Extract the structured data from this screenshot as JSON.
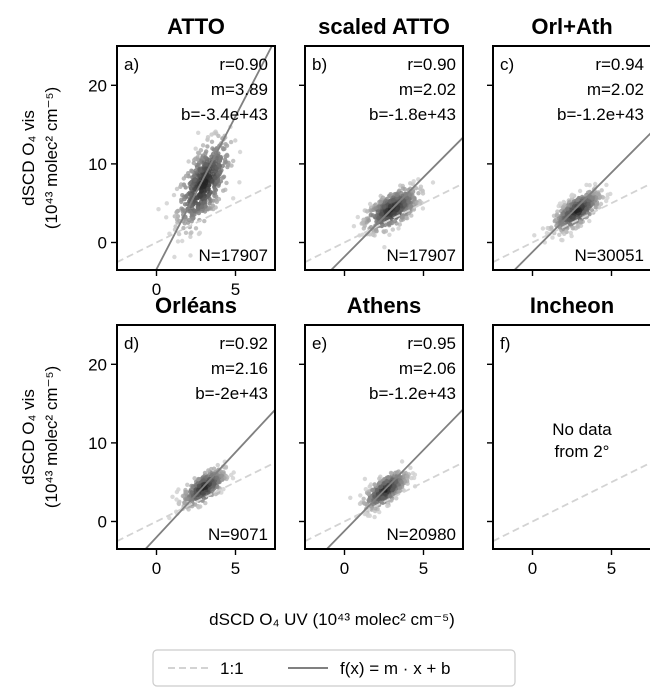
{
  "chart_data": [
    {
      "type": "scatter",
      "title": "ATTO",
      "panel": "a)",
      "stats": {
        "r": "r=0.90",
        "m": "m=3.89",
        "b": "b=-3.4e+43",
        "n": "N=17907"
      },
      "slope": 3.89,
      "intercept": -3.4,
      "cloud": {
        "cx": 3.0,
        "cy": 7.5,
        "sx": 1.5,
        "sy": 5.5,
        "tilt": 0.55,
        "count": 500
      },
      "xlim": [
        -2.5,
        7.5
      ],
      "ylim": [
        -3.5,
        25
      ],
      "xticks": [
        "0",
        "5"
      ],
      "yticks": [
        "0",
        "10",
        "20"
      ]
    },
    {
      "type": "scatter",
      "title": "scaled ATTO",
      "panel": "b)",
      "stats": {
        "r": "r=0.90",
        "m": "m=2.02",
        "b": "b=-1.8e+43",
        "n": "N=17907"
      },
      "slope": 2.02,
      "intercept": -1.8,
      "cloud": {
        "cx": 3.0,
        "cy": 4.2,
        "sx": 1.5,
        "sy": 2.7,
        "tilt": 0.55,
        "count": 450
      },
      "xlim": [
        -2.5,
        7.5
      ],
      "ylim": [
        -3.5,
        25
      ],
      "xticks": [],
      "yticks": []
    },
    {
      "type": "scatter",
      "title": "Orl+Ath",
      "panel": "c)",
      "stats": {
        "r": "r=0.94",
        "m": "m=2.02",
        "b": "b=-1.2e+43",
        "n": "N=30051"
      },
      "slope": 2.02,
      "intercept": -1.2,
      "cloud": {
        "cx": 2.8,
        "cy": 4.0,
        "sx": 1.3,
        "sy": 2.4,
        "tilt": 0.65,
        "count": 450
      },
      "xlim": [
        -2.5,
        7.5
      ],
      "ylim": [
        -3.5,
        25
      ],
      "xticks": [],
      "yticks": []
    },
    {
      "type": "scatter",
      "title": "Orléans",
      "panel": "d)",
      "stats": {
        "r": "r=0.92",
        "m": "m=2.16",
        "b": "b=-2e+43",
        "n": "N=9071"
      },
      "slope": 2.16,
      "intercept": -2.0,
      "cloud": {
        "cx": 3.0,
        "cy": 4.3,
        "sx": 1.2,
        "sy": 2.3,
        "tilt": 0.6,
        "count": 350
      },
      "xlim": [
        -2.5,
        7.5
      ],
      "ylim": [
        -3.5,
        25
      ],
      "xticks": [
        "0",
        "5"
      ],
      "yticks": [
        "0",
        "10",
        "20"
      ]
    },
    {
      "type": "scatter",
      "title": "Athens",
      "panel": "e)",
      "stats": {
        "r": "r=0.95",
        "m": "m=2.06",
        "b": "b=-1.2e+43",
        "n": "N=20980"
      },
      "slope": 2.06,
      "intercept": -1.2,
      "cloud": {
        "cx": 2.6,
        "cy": 4.0,
        "sx": 1.2,
        "sy": 2.3,
        "tilt": 0.65,
        "count": 400
      },
      "xlim": [
        -2.5,
        7.5
      ],
      "ylim": [
        -3.5,
        25
      ],
      "xticks": [
        "0",
        "5"
      ],
      "yticks": []
    },
    {
      "type": "scatter",
      "title": "Incheon",
      "panel": "f)",
      "stats": null,
      "empty_text": [
        "No data",
        "from 2°"
      ],
      "xlim": [
        -2.5,
        7.5
      ],
      "ylim": [
        -3.5,
        25
      ],
      "xticks": [
        "0",
        "5"
      ],
      "yticks": []
    }
  ],
  "axes": {
    "ylabel_line1": "dSCD O₄ vis",
    "ylabel_line2": "(10⁴³ molec² cm⁻⁵)",
    "xlabel": "dSCD O₄ UV (10⁴³ molec² cm⁻⁵)"
  },
  "legend": {
    "items": [
      {
        "label": "1:1",
        "style": "dashed",
        "color": "#d3d3d3"
      },
      {
        "label": "f(x) = m · x + b",
        "style": "solid",
        "color": "#808080"
      }
    ]
  }
}
